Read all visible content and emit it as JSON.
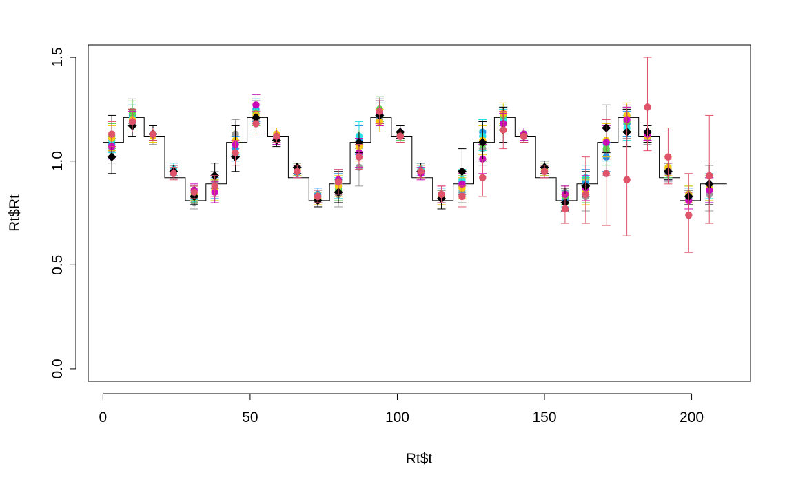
{
  "chart_data": {
    "type": "scatter",
    "title": "",
    "xlabel": "Rt$t",
    "ylabel": "Rt$Rt",
    "xlim": [
      -5,
      220
    ],
    "ylim": [
      -0.06,
      1.56
    ],
    "xticks": [
      0,
      50,
      100,
      150,
      200
    ],
    "xtick_labels": [
      "0",
      "50",
      "100",
      "150",
      "200"
    ],
    "yticks": [
      0.0,
      0.5,
      1.0,
      1.5
    ],
    "ytick_labels": [
      "0.0",
      "0.5",
      "1.0",
      "1.5"
    ],
    "grid": false,
    "legend": "none",
    "x": [
      3,
      10,
      17,
      24,
      31,
      38,
      45,
      52,
      59,
      66,
      73,
      80,
      87,
      94,
      101,
      108,
      115,
      122,
      129,
      136,
      143,
      150,
      157,
      164,
      171,
      178,
      185,
      192,
      199,
      206
    ],
    "true_step": {
      "x_start": 0,
      "x_end": 212,
      "step_width": 7,
      "values": [
        1.09,
        1.21,
        1.12,
        0.92,
        0.81,
        0.89,
        1.09,
        1.21,
        1.12,
        0.92,
        0.81,
        0.89,
        1.09,
        1.21,
        1.12,
        0.92,
        0.81,
        0.89,
        1.09,
        1.21,
        1.12,
        0.92,
        0.81,
        0.89,
        1.09,
        1.21,
        1.12,
        0.92,
        0.81,
        0.89
      ],
      "color": "#000000"
    },
    "series": [
      {
        "color": "#000000",
        "marker": "diamond",
        "values": [
          1.02,
          1.17,
          1.13,
          0.95,
          0.83,
          0.93,
          1.02,
          1.21,
          1.1,
          0.97,
          0.81,
          0.85,
          1.09,
          1.22,
          1.14,
          0.95,
          0.82,
          0.95,
          1.09,
          1.15,
          1.12,
          0.97,
          0.8,
          0.88,
          1.16,
          1.14,
          1.14,
          0.95,
          0.83,
          0.89
        ],
        "lower": [
          0.94,
          1.12,
          1.1,
          0.92,
          0.79,
          0.87,
          0.95,
          1.16,
          1.07,
          0.94,
          0.78,
          0.8,
          1.04,
          1.18,
          1.11,
          0.92,
          0.77,
          0.84,
          1.0,
          1.09,
          1.09,
          0.94,
          0.76,
          0.83,
          1.04,
          1.07,
          1.09,
          0.91,
          0.79,
          0.79
        ],
        "upper": [
          1.22,
          1.25,
          1.17,
          0.98,
          0.88,
          0.99,
          1.17,
          1.29,
          1.15,
          0.99,
          0.86,
          0.95,
          1.14,
          1.29,
          1.17,
          0.99,
          0.86,
          1.06,
          1.19,
          1.26,
          1.15,
          1.0,
          0.87,
          0.95,
          1.27,
          1.25,
          1.17,
          0.99,
          0.86,
          0.98
        ]
      },
      {
        "color": "#999999",
        "marker": "circle",
        "values": [
          1.05,
          1.24,
          1.12,
          0.96,
          0.8,
          0.9,
          1.13,
          1.2,
          1.11,
          0.95,
          0.81,
          0.84,
          0.97,
          1.2,
          1.13,
          0.96,
          0.82,
          0.85,
          1.06,
          1.19,
          1.13,
          0.95,
          0.85,
          0.83,
          1.05,
          1.18,
          1.11,
          0.94,
          0.82,
          0.84
        ],
        "lower": [
          0.99,
          1.18,
          1.08,
          0.93,
          0.77,
          0.84,
          1.06,
          1.14,
          1.08,
          0.93,
          0.78,
          0.78,
          0.88,
          1.15,
          1.1,
          0.93,
          0.79,
          0.8,
          0.98,
          1.14,
          1.1,
          0.92,
          0.8,
          0.76,
          0.93,
          1.11,
          1.08,
          0.9,
          0.77,
          0.76
        ],
        "upper": [
          1.11,
          1.3,
          1.16,
          0.99,
          0.83,
          0.95,
          1.2,
          1.27,
          1.15,
          0.98,
          0.85,
          0.89,
          1.06,
          1.31,
          1.16,
          0.99,
          0.86,
          0.92,
          1.14,
          1.25,
          1.16,
          0.98,
          0.88,
          0.92,
          1.16,
          1.26,
          1.14,
          0.98,
          0.86,
          0.92
        ]
      },
      {
        "color": "#2297E6",
        "marker": "circle",
        "values": [
          1.08,
          1.22,
          1.13,
          0.95,
          0.82,
          0.87,
          1.06,
          1.25,
          1.12,
          0.94,
          0.84,
          0.88,
          1.1,
          1.22,
          1.12,
          0.95,
          0.84,
          0.9,
          1.14,
          1.21,
          1.12,
          0.96,
          0.82,
          0.9,
          1.02,
          1.18,
          1.13,
          0.95,
          0.83,
          0.86
        ],
        "lower": [
          1.02,
          1.17,
          1.1,
          0.92,
          0.8,
          0.82,
          1.0,
          1.19,
          1.09,
          0.92,
          0.8,
          0.82,
          1.03,
          1.16,
          1.09,
          0.92,
          0.8,
          0.85,
          1.08,
          1.16,
          1.09,
          0.93,
          0.78,
          0.84,
          0.95,
          1.12,
          1.1,
          0.91,
          0.79,
          0.8
        ],
        "upper": [
          1.14,
          1.27,
          1.16,
          0.98,
          0.85,
          0.92,
          1.12,
          1.3,
          1.15,
          0.97,
          0.87,
          0.94,
          1.17,
          1.28,
          1.15,
          0.98,
          0.87,
          0.95,
          1.2,
          1.26,
          1.15,
          0.99,
          0.86,
          0.96,
          1.09,
          1.24,
          1.16,
          0.99,
          0.87,
          0.92
        ]
      },
      {
        "color": "#28E2E5",
        "marker": "circle",
        "values": [
          1.1,
          1.21,
          1.13,
          0.96,
          0.82,
          0.88,
          1.09,
          1.24,
          1.12,
          0.96,
          0.83,
          0.87,
          1.12,
          1.24,
          1.12,
          0.96,
          0.83,
          0.91,
          1.12,
          1.2,
          1.13,
          0.96,
          0.84,
          0.92,
          1.08,
          1.16,
          1.12,
          0.95,
          0.84,
          0.88
        ],
        "lower": [
          1.04,
          1.15,
          1.1,
          0.93,
          0.79,
          0.83,
          1.03,
          1.18,
          1.09,
          0.93,
          0.8,
          0.82,
          1.04,
          1.18,
          1.09,
          0.93,
          0.8,
          0.86,
          1.05,
          1.15,
          1.1,
          0.93,
          0.8,
          0.86,
          1.0,
          1.1,
          1.09,
          0.92,
          0.8,
          0.82
        ],
        "upper": [
          1.16,
          1.27,
          1.16,
          0.99,
          0.85,
          0.93,
          1.15,
          1.3,
          1.15,
          0.99,
          0.86,
          0.92,
          1.19,
          1.3,
          1.15,
          0.99,
          0.86,
          0.96,
          1.2,
          1.25,
          1.16,
          0.99,
          0.88,
          0.98,
          1.16,
          1.22,
          1.15,
          0.98,
          0.88,
          0.94
        ]
      },
      {
        "color": "#61D04F",
        "marker": "circle",
        "values": [
          1.12,
          1.23,
          1.12,
          0.95,
          0.83,
          0.86,
          1.08,
          1.23,
          1.13,
          0.95,
          0.82,
          0.86,
          1.08,
          1.25,
          1.13,
          0.95,
          0.83,
          0.88,
          1.08,
          1.22,
          1.13,
          0.95,
          0.83,
          0.86,
          1.06,
          1.19,
          1.12,
          0.96,
          0.84,
          0.87
        ],
        "lower": [
          1.06,
          1.17,
          1.09,
          0.92,
          0.8,
          0.81,
          1.02,
          1.17,
          1.1,
          0.92,
          0.79,
          0.81,
          1.01,
          1.19,
          1.1,
          0.92,
          0.79,
          0.83,
          1.01,
          1.17,
          1.1,
          0.92,
          0.79,
          0.8,
          0.98,
          1.13,
          1.09,
          0.92,
          0.8,
          0.81
        ],
        "upper": [
          1.18,
          1.29,
          1.15,
          0.98,
          0.86,
          0.91,
          1.14,
          1.29,
          1.16,
          0.98,
          0.85,
          0.91,
          1.15,
          1.31,
          1.16,
          0.98,
          0.86,
          0.93,
          1.15,
          1.27,
          1.16,
          0.98,
          0.87,
          0.92,
          1.14,
          1.25,
          1.15,
          0.99,
          0.88,
          0.93
        ]
      },
      {
        "color": "#F5C710",
        "marker": "circle",
        "values": [
          1.11,
          1.2,
          1.12,
          0.95,
          0.84,
          0.86,
          1.1,
          1.22,
          1.13,
          0.96,
          0.82,
          0.88,
          1.07,
          1.19,
          1.12,
          0.95,
          0.83,
          0.87,
          1.1,
          1.23,
          1.12,
          0.96,
          0.84,
          0.85,
          1.1,
          1.22,
          1.12,
          0.97,
          0.84,
          0.87
        ],
        "lower": [
          1.05,
          1.15,
          1.09,
          0.92,
          0.81,
          0.81,
          1.04,
          1.16,
          1.1,
          0.93,
          0.79,
          0.83,
          1.0,
          1.14,
          1.09,
          0.92,
          0.79,
          0.82,
          1.03,
          1.18,
          1.09,
          0.93,
          0.8,
          0.79,
          1.02,
          1.16,
          1.09,
          0.93,
          0.8,
          0.81
        ],
        "upper": [
          1.17,
          1.25,
          1.15,
          0.98,
          0.87,
          0.91,
          1.16,
          1.28,
          1.16,
          0.99,
          0.85,
          0.93,
          1.14,
          1.25,
          1.15,
          0.98,
          0.86,
          0.92,
          1.17,
          1.28,
          1.15,
          0.99,
          0.88,
          0.91,
          1.18,
          1.28,
          1.15,
          1.01,
          0.88,
          0.93
        ]
      },
      {
        "color": "#CD0BBC",
        "marker": "circle",
        "values": [
          1.07,
          1.19,
          1.13,
          0.95,
          0.86,
          0.85,
          1.08,
          1.27,
          1.11,
          0.95,
          0.83,
          0.91,
          1.04,
          1.23,
          1.12,
          0.94,
          0.84,
          0.89,
          1.01,
          1.18,
          1.13,
          0.95,
          0.84,
          0.87,
          1.09,
          1.2,
          1.13,
          0.95,
          0.81,
          0.86
        ],
        "lower": [
          1.01,
          1.14,
          1.1,
          0.92,
          0.83,
          0.8,
          1.02,
          1.21,
          1.08,
          0.92,
          0.8,
          0.85,
          0.97,
          1.17,
          1.09,
          0.91,
          0.8,
          0.84,
          0.94,
          1.13,
          1.1,
          0.92,
          0.8,
          0.81,
          1.01,
          1.14,
          1.1,
          0.91,
          0.77,
          0.8
        ],
        "upper": [
          1.13,
          1.24,
          1.16,
          0.98,
          0.89,
          0.9,
          1.14,
          1.32,
          1.14,
          0.98,
          0.86,
          0.96,
          1.11,
          1.29,
          1.15,
          0.97,
          0.88,
          0.94,
          1.08,
          1.23,
          1.16,
          0.98,
          0.88,
          0.93,
          1.17,
          1.26,
          1.16,
          0.99,
          0.85,
          0.92
        ]
      },
      {
        "color": "#DF536B",
        "marker": "circle",
        "values": [
          1.13,
          1.19,
          1.13,
          0.94,
          0.85,
          0.88,
          1.04,
          1.18,
          1.12,
          0.95,
          0.83,
          0.9,
          1.02,
          1.24,
          1.12,
          0.95,
          0.84,
          0.83,
          0.92,
          1.15,
          1.12,
          0.95,
          0.77,
          0.84,
          0.94,
          0.91,
          1.26,
          1.02,
          0.74,
          0.93
        ],
        "lower": [
          1.07,
          1.14,
          1.1,
          0.91,
          0.82,
          0.83,
          0.98,
          1.13,
          1.09,
          0.92,
          0.8,
          0.84,
          0.96,
          1.18,
          1.09,
          0.92,
          0.8,
          0.78,
          0.83,
          1.06,
          1.09,
          0.92,
          0.7,
          0.7,
          0.69,
          0.64,
          1.05,
          0.89,
          0.56,
          0.7
        ],
        "upper": [
          1.19,
          1.25,
          1.16,
          0.97,
          0.88,
          0.93,
          1.1,
          1.24,
          1.15,
          0.98,
          0.86,
          0.96,
          1.08,
          1.3,
          1.15,
          0.98,
          0.88,
          0.88,
          1.01,
          1.24,
          1.15,
          0.98,
          0.84,
          1.02,
          1.2,
          1.27,
          1.5,
          1.16,
          0.94,
          1.22
        ]
      }
    ]
  }
}
